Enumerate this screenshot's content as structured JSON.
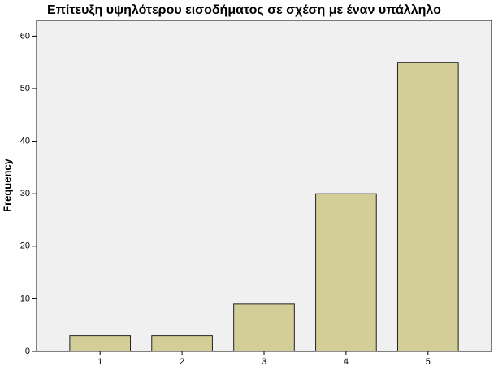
{
  "chart_data": {
    "type": "bar",
    "title": "Επίτευξη υψηλότερου εισοδήματος σε σχέση με έναν υπάλληλο",
    "y_label": "Frequency",
    "categories": [
      "1",
      "2",
      "3",
      "4",
      "5"
    ],
    "values": [
      3,
      3,
      9,
      30,
      55
    ],
    "color": "#d3ce98",
    "ylim": [
      0,
      63
    ],
    "yticks": [
      0,
      10,
      20,
      30,
      40,
      50,
      60
    ],
    "grid": false
  }
}
